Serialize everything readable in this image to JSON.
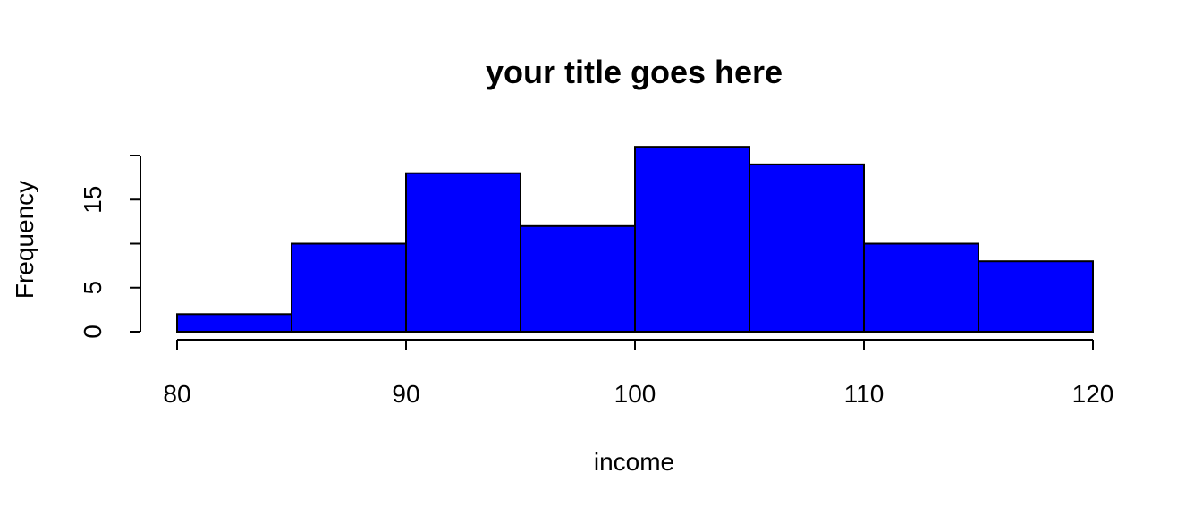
{
  "chart_data": {
    "type": "histogram",
    "title": "your title goes here",
    "xlabel": "income",
    "ylabel": "Frequency",
    "bins": [
      {
        "start": 80,
        "end": 85,
        "count": 2
      },
      {
        "start": 85,
        "end": 90,
        "count": 10
      },
      {
        "start": 90,
        "end": 95,
        "count": 18
      },
      {
        "start": 95,
        "end": 100,
        "count": 12
      },
      {
        "start": 100,
        "end": 105,
        "count": 21
      },
      {
        "start": 105,
        "end": 110,
        "count": 19
      },
      {
        "start": 110,
        "end": 115,
        "count": 10
      },
      {
        "start": 115,
        "end": 120,
        "count": 8
      }
    ],
    "xlim": [
      80,
      120
    ],
    "ylim": [
      0,
      20
    ],
    "x_ticks": [
      80,
      90,
      100,
      110,
      120
    ],
    "y_ticks": [
      0,
      5,
      10,
      15,
      20
    ],
    "y_tick_labels": [
      "0",
      "5",
      "",
      "15",
      ""
    ],
    "bar_color": "#0000ff",
    "grid": false,
    "legend": "none"
  }
}
